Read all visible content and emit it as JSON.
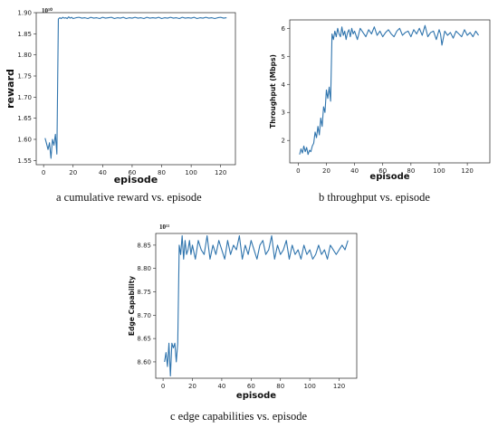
{
  "chart_data": [
    {
      "type": "line",
      "panel": "a",
      "caption": "a  cumulative reward vs. episode",
      "xlabel": "episode",
      "ylabel": "reward",
      "scale_label": "10¹⁰",
      "xlim": [
        -5,
        130
      ],
      "ylim": [
        1.54,
        1.9
      ],
      "xticks": [
        0,
        20,
        40,
        60,
        80,
        100,
        120
      ],
      "yticks": [
        1.55,
        1.6,
        1.65,
        1.7,
        1.75,
        1.8,
        1.85,
        1.9
      ],
      "ytick_labels": [
        "1.55",
        "1.60",
        "1.65",
        "1.70",
        "1.75",
        "1.80",
        "1.85",
        "1.90"
      ],
      "series": [
        {
          "x": [
            1,
            2,
            3,
            4,
            5,
            6,
            7,
            8,
            9,
            10,
            11,
            12,
            13,
            14,
            15,
            16,
            17,
            18,
            19,
            20,
            22,
            24,
            26,
            28,
            30,
            32,
            34,
            36,
            38,
            40,
            42,
            44,
            46,
            48,
            50,
            52,
            54,
            56,
            58,
            60,
            62,
            64,
            66,
            68,
            70,
            72,
            74,
            76,
            78,
            80,
            82,
            84,
            86,
            88,
            90,
            92,
            94,
            96,
            98,
            100,
            102,
            104,
            106,
            108,
            110,
            112,
            114,
            116,
            118,
            120,
            122,
            124
          ],
          "values": [
            1.603,
            1.59,
            1.576,
            1.592,
            1.555,
            1.6,
            1.586,
            1.612,
            1.565,
            1.885,
            1.888,
            1.886,
            1.889,
            1.887,
            1.888,
            1.886,
            1.89,
            1.887,
            1.889,
            1.886,
            1.888,
            1.889,
            1.887,
            1.888,
            1.886,
            1.889,
            1.887,
            1.888,
            1.886,
            1.889,
            1.887,
            1.888,
            1.889,
            1.886,
            1.888,
            1.887,
            1.889,
            1.886,
            1.888,
            1.887,
            1.889,
            1.887,
            1.888,
            1.886,
            1.889,
            1.887,
            1.888,
            1.887,
            1.889,
            1.886,
            1.888,
            1.887,
            1.889,
            1.887,
            1.888,
            1.886,
            1.889,
            1.887,
            1.888,
            1.887,
            1.889,
            1.886,
            1.888,
            1.887,
            1.889,
            1.887,
            1.888,
            1.886,
            1.888,
            1.889,
            1.887,
            1.888
          ]
        }
      ]
    },
    {
      "type": "line",
      "panel": "b",
      "caption": "b  throughput vs. episode",
      "xlabel": "episode",
      "ylabel": "Throughput (Mbps)",
      "xlim": [
        -6,
        136
      ],
      "ylim": [
        1.2,
        6.3
      ],
      "xticks": [
        0,
        20,
        40,
        60,
        80,
        100,
        120
      ],
      "yticks": [
        2,
        3,
        4,
        5,
        6
      ],
      "ytick_labels": [
        "2",
        "3",
        "4",
        "5",
        "6"
      ],
      "series": [
        {
          "x": [
            1,
            2,
            3,
            4,
            5,
            6,
            7,
            8,
            9,
            10,
            11,
            12,
            13,
            14,
            15,
            16,
            17,
            18,
            19,
            20,
            21,
            22,
            23,
            24,
            25,
            26,
            27,
            28,
            29,
            30,
            31,
            32,
            33,
            34,
            35,
            36,
            37,
            38,
            39,
            40,
            42,
            44,
            46,
            48,
            50,
            52,
            54,
            56,
            58,
            60,
            62,
            64,
            66,
            68,
            70,
            72,
            74,
            76,
            78,
            80,
            82,
            84,
            86,
            88,
            90,
            92,
            94,
            96,
            98,
            100,
            101,
            102,
            104,
            106,
            108,
            110,
            112,
            114,
            116,
            118,
            120,
            122,
            124,
            126,
            128
          ],
          "values": [
            1.5,
            1.7,
            1.55,
            1.8,
            1.6,
            1.75,
            1.5,
            1.65,
            1.6,
            1.8,
            1.9,
            2.3,
            2.1,
            2.5,
            2.2,
            2.8,
            2.5,
            3.2,
            3.0,
            3.8,
            3.5,
            3.9,
            3.4,
            5.8,
            5.6,
            5.9,
            5.7,
            6.0,
            5.8,
            5.7,
            6.05,
            5.75,
            5.9,
            5.6,
            5.85,
            5.95,
            5.7,
            6.0,
            5.8,
            5.9,
            5.6,
            6.0,
            5.85,
            5.7,
            5.95,
            5.8,
            6.05,
            5.75,
            5.9,
            5.7,
            5.85,
            5.95,
            5.8,
            5.7,
            5.9,
            6.0,
            5.75,
            5.85,
            5.9,
            5.7,
            5.95,
            5.8,
            6.0,
            5.75,
            6.1,
            5.7,
            5.85,
            5.9,
            5.6,
            5.95,
            5.8,
            5.4,
            5.9,
            5.75,
            5.85,
            5.65,
            5.9,
            5.8,
            5.7,
            5.95,
            5.75,
            5.85,
            5.7,
            5.9,
            5.75
          ]
        }
      ]
    },
    {
      "type": "line",
      "panel": "c",
      "caption": "c  edge capabilities vs. episode",
      "xlabel": "episode",
      "ylabel": "Edge Capability",
      "scale_label": "10¹¹",
      "xlim": [
        -5,
        132
      ],
      "ylim": [
        8.565,
        8.875
      ],
      "xticks": [
        0,
        20,
        40,
        60,
        80,
        100,
        120
      ],
      "yticks": [
        8.6,
        8.65,
        8.7,
        8.75,
        8.8,
        8.85
      ],
      "ytick_labels": [
        "8.60",
        "8.65",
        "8.70",
        "8.75",
        "8.80",
        "8.85"
      ],
      "series": [
        {
          "x": [
            1,
            2,
            3,
            4,
            5,
            6,
            7,
            8,
            9,
            10,
            11,
            12,
            13,
            14,
            15,
            16,
            17,
            18,
            19,
            20,
            22,
            24,
            26,
            28,
            30,
            32,
            34,
            36,
            38,
            40,
            42,
            44,
            46,
            48,
            50,
            52,
            54,
            56,
            58,
            60,
            62,
            64,
            66,
            68,
            70,
            72,
            74,
            76,
            78,
            80,
            82,
            84,
            86,
            88,
            90,
            92,
            94,
            96,
            98,
            100,
            102,
            104,
            106,
            108,
            110,
            112,
            114,
            116,
            118,
            120,
            122,
            124,
            126
          ],
          "values": [
            8.6,
            8.62,
            8.59,
            8.64,
            8.57,
            8.64,
            8.63,
            8.64,
            8.6,
            8.64,
            8.85,
            8.83,
            8.87,
            8.82,
            8.86,
            8.83,
            8.84,
            8.86,
            8.83,
            8.85,
            8.82,
            8.86,
            8.84,
            8.83,
            8.87,
            8.82,
            8.85,
            8.83,
            8.86,
            8.84,
            8.82,
            8.86,
            8.83,
            8.85,
            8.84,
            8.87,
            8.82,
            8.85,
            8.83,
            8.86,
            8.84,
            8.82,
            8.85,
            8.86,
            8.83,
            8.84,
            8.87,
            8.82,
            8.85,
            8.83,
            8.84,
            8.86,
            8.82,
            8.85,
            8.83,
            8.84,
            8.82,
            8.85,
            8.83,
            8.84,
            8.82,
            8.83,
            8.85,
            8.83,
            8.84,
            8.82,
            8.85,
            8.84,
            8.83,
            8.84,
            8.85,
            8.84,
            8.86
          ]
        }
      ]
    }
  ]
}
